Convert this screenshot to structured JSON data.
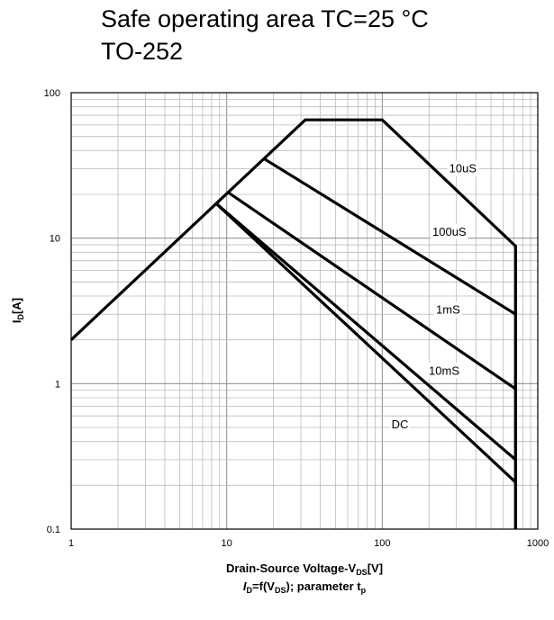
{
  "title_line1": "Safe operating area TC=25 °C",
  "title_line2": "TO-252",
  "chart_data": {
    "type": "line",
    "x_scale": "log",
    "y_scale": "log",
    "xlim": [
      1,
      1000
    ],
    "ylim": [
      0.1,
      100
    ],
    "grid": true,
    "x_ticks": [
      "1",
      "10",
      "100",
      "1000"
    ],
    "y_ticks": [
      "0.1",
      "1",
      "10",
      "100"
    ],
    "ylabel": {
      "main": "I",
      "sub": "D",
      "unit": "[A]"
    },
    "xlabel": {
      "main": "Drain-Source Voltage-V",
      "sub": "DS",
      "unit": "[V]"
    },
    "caption": {
      "lhs_main": "I",
      "lhs_sub": "D",
      "mid": "=f(V",
      "mid_sub": "DS",
      "rhs": "); parameter t",
      "rhs_sub": "p"
    },
    "series": [
      {
        "name": "10uS",
        "points": [
          [
            1,
            2.0
          ],
          [
            32,
            65
          ],
          [
            100,
            65
          ],
          [
            720,
            8.8
          ],
          [
            720,
            0.1
          ]
        ]
      },
      {
        "name": "100uS",
        "points": [
          [
            17.5,
            35
          ],
          [
            720,
            3.0
          ]
        ]
      },
      {
        "name": "1mS",
        "points": [
          [
            10.3,
            20.5
          ],
          [
            720,
            0.92
          ]
        ]
      },
      {
        "name": "10mS",
        "points": [
          [
            8.6,
            17.2
          ],
          [
            720,
            0.3
          ]
        ]
      },
      {
        "name": "DC",
        "points": [
          [
            8.6,
            17.2
          ],
          [
            720,
            0.21
          ]
        ]
      }
    ],
    "curve_labels": [
      {
        "text": "10uS",
        "x": 330,
        "y": 30
      },
      {
        "text": "100uS",
        "x": 270,
        "y": 11
      },
      {
        "text": "1mS",
        "x": 265,
        "y": 3.2
      },
      {
        "text": "10mS",
        "x": 250,
        "y": 1.22
      },
      {
        "text": "DC",
        "x": 130,
        "y": 0.52
      }
    ]
  }
}
